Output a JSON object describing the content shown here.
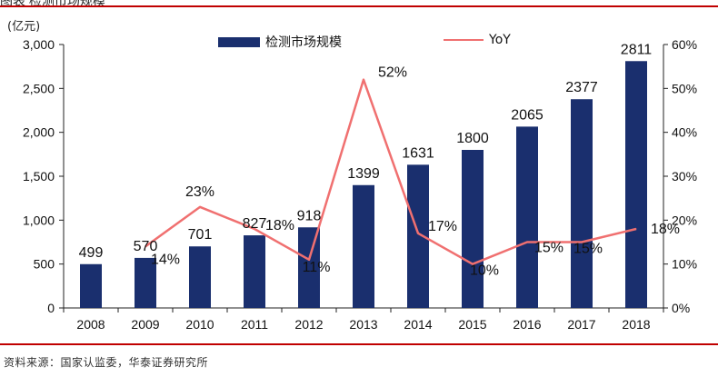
{
  "header": {
    "partial_title": "图表 检测市场规模"
  },
  "unit_label": "(亿元)",
  "footer": {
    "source": "资料来源：国家认监委，华泰证券研究所"
  },
  "colors": {
    "bar": "#1a2f6e",
    "line": "#f07070",
    "accent": "#c00000"
  },
  "chart_data": {
    "type": "bar",
    "categories": [
      "2008",
      "2009",
      "2010",
      "2011",
      "2012",
      "2013",
      "2014",
      "2015",
      "2016",
      "2017",
      "2018"
    ],
    "series": [
      {
        "name": "检测市场规模",
        "type": "bar",
        "axis": "left",
        "values": [
          499,
          570,
          701,
          827,
          918,
          1399,
          1631,
          1800,
          2065,
          2377,
          2811
        ]
      },
      {
        "name": "YoY",
        "type": "line",
        "axis": "right",
        "values": [
          null,
          14,
          23,
          18,
          11,
          52,
          17,
          10,
          15,
          15,
          18
        ]
      }
    ],
    "data_labels": {
      "bars": [
        "499",
        "570",
        "701",
        "827",
        "918",
        "1399",
        "1631",
        "1800",
        "2065",
        "2377",
        "2811"
      ],
      "line": [
        "",
        "14%",
        "23%",
        "18%",
        "11%",
        "52%",
        "17%",
        "10%",
        "15%",
        "15%",
        "18%"
      ]
    },
    "left_axis": {
      "min": 0,
      "max": 3000,
      "ticks": [
        0,
        500,
        1000,
        1500,
        2000,
        2500,
        3000
      ],
      "tick_labels": [
        "0",
        "500",
        "1,000",
        "1,500",
        "2,000",
        "2,500",
        "3,000"
      ]
    },
    "right_axis": {
      "min": 0,
      "max": 60,
      "ticks": [
        0,
        10,
        20,
        30,
        40,
        50,
        60
      ],
      "tick_labels": [
        "0%",
        "10%",
        "20%",
        "30%",
        "40%",
        "50%",
        "60%"
      ]
    },
    "legend_position": "top",
    "grid": false
  }
}
